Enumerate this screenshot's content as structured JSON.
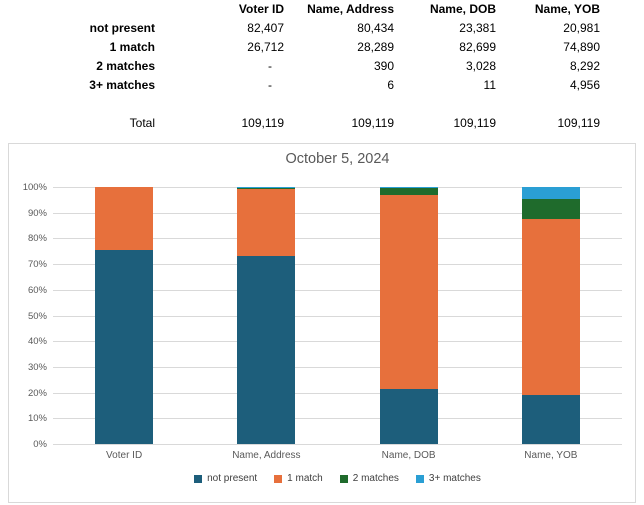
{
  "table": {
    "col_headers": [
      "Voter ID",
      "Name, Address",
      "Name, DOB",
      "Name, YOB"
    ],
    "rows": [
      {
        "label": "not present",
        "values": [
          "82,407",
          "80,434",
          "23,381",
          "20,981"
        ]
      },
      {
        "label": "1 match",
        "values": [
          "26,712",
          "28,289",
          "82,699",
          "74,890"
        ]
      },
      {
        "label": "2 matches",
        "values": [
          "-",
          "390",
          "3,028",
          "8,292"
        ]
      },
      {
        "label": "3+ matches",
        "values": [
          "-",
          "6",
          "11",
          "4,956"
        ]
      }
    ],
    "total": {
      "label": "Total",
      "values": [
        "109,119",
        "109,119",
        "109,119",
        "109,119"
      ]
    }
  },
  "chart_data": {
    "type": "bar",
    "stacked": true,
    "percent_stacked": true,
    "title": "October 5, 2024",
    "categories": [
      "Voter ID",
      "Name, Address",
      "Name, DOB",
      "Name, YOB"
    ],
    "series": [
      {
        "name": "not present",
        "color": "#1d5e7b",
        "values": [
          82407,
          80434,
          23381,
          20981
        ]
      },
      {
        "name": "1 match",
        "color": "#e7703c",
        "values": [
          26712,
          28289,
          82699,
          74890
        ]
      },
      {
        "name": "2 matches",
        "color": "#1f6b2c",
        "values": [
          0,
          390,
          3028,
          8292
        ]
      },
      {
        "name": "3+ matches",
        "color": "#2a9fd4",
        "values": [
          0,
          6,
          11,
          4956
        ]
      }
    ],
    "column_total": 109119,
    "y_ticks": [
      "100%",
      "90%",
      "80%",
      "70%",
      "60%",
      "50%",
      "40%",
      "30%",
      "20%",
      "10%",
      "0%"
    ],
    "ylim": [
      0,
      100
    ],
    "grid": true,
    "gridline_color": "#d9d9d9",
    "title_color": "#595959",
    "axis_text_color": "#595959",
    "legend_position": "bottom"
  }
}
